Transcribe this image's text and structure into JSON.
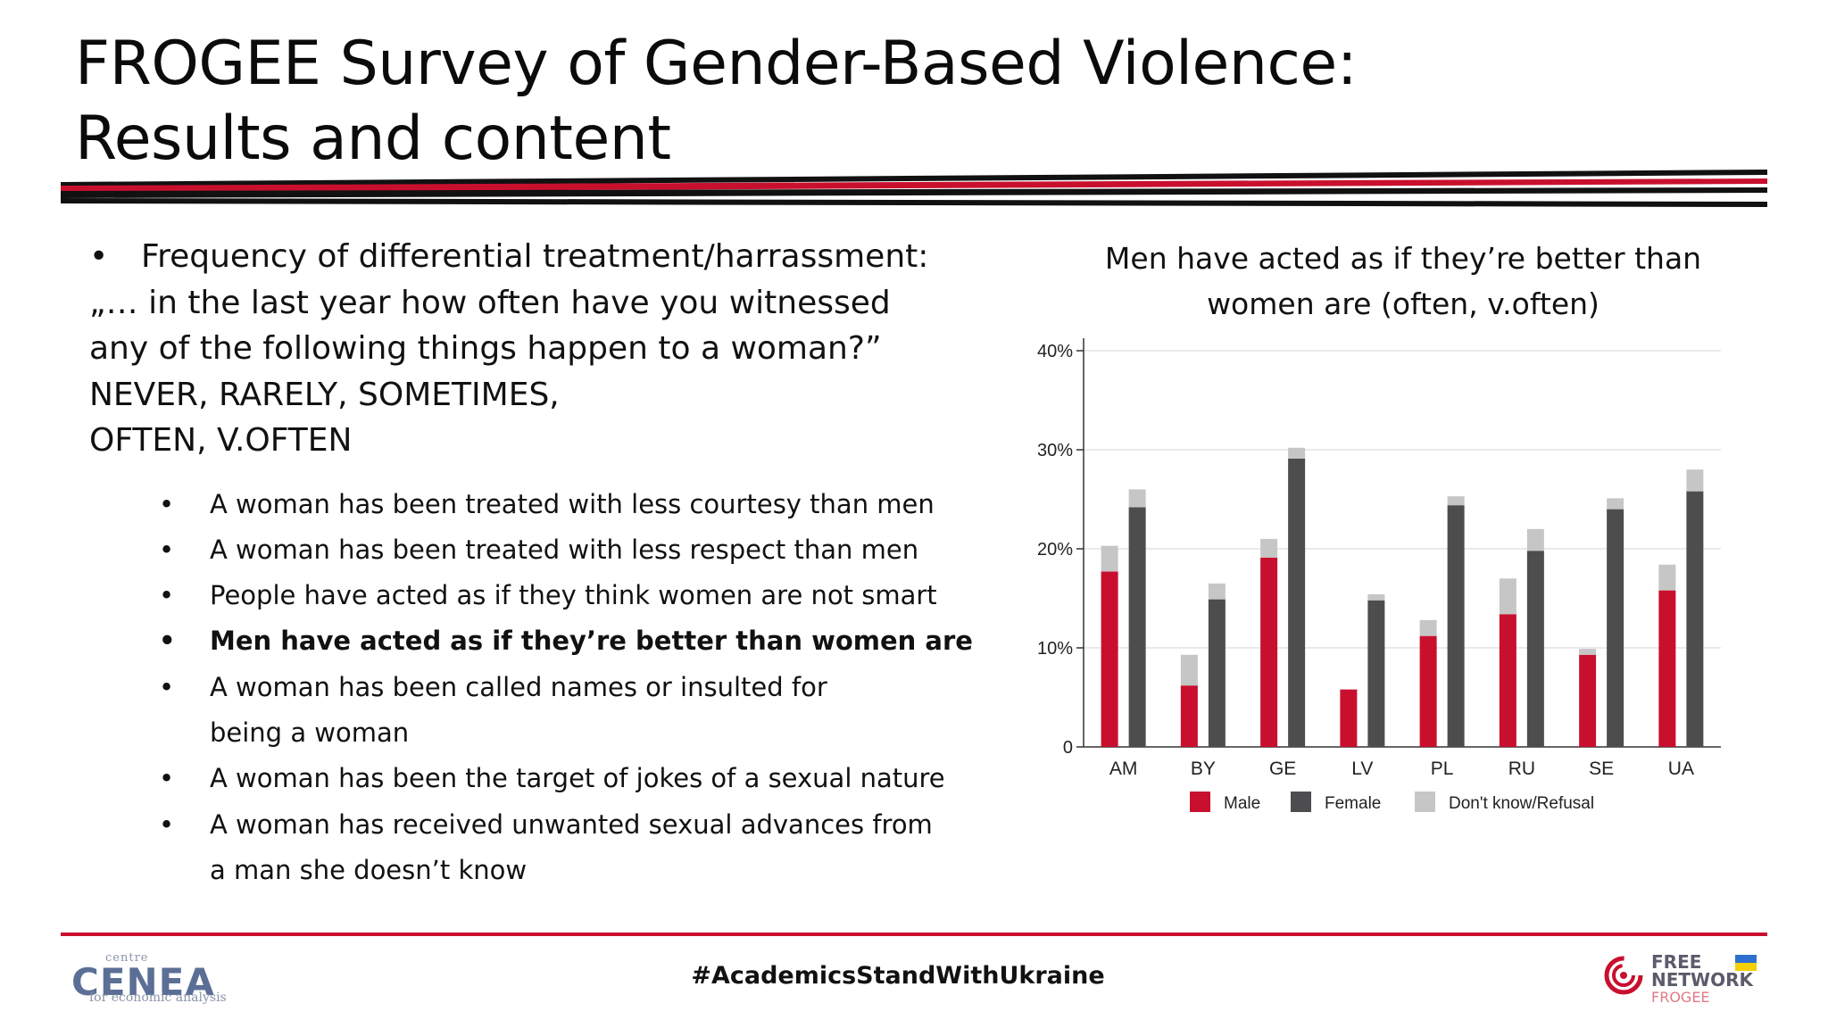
{
  "title": {
    "line1": "FROGEE Survey of Gender-Based Violence:",
    "line2": "Results and content"
  },
  "intro": {
    "bullet": "•",
    "lines": [
      "Frequency of differential treatment/harrassment:",
      "„… in the last year how often have you witnessed",
      "any of the following things happen to a woman?”",
      "NEVER, RARELY, SOMETIMES,",
      "OFTEN, V.OFTEN"
    ]
  },
  "items": [
    {
      "lines": [
        "A woman has been treated with less courtesy than men"
      ],
      "bold": false
    },
    {
      "lines": [
        "A woman has been treated with less respect than men"
      ],
      "bold": false
    },
    {
      "lines": [
        "People have acted as if they think women are not smart"
      ],
      "bold": false
    },
    {
      "lines": [
        "Men have acted as if they’re better than women are"
      ],
      "bold": true
    },
    {
      "lines": [
        "A woman has been called names or insulted for",
        "being a woman"
      ],
      "bold": false
    },
    {
      "lines": [
        "A woman has been the target of jokes of a sexual nature"
      ],
      "bold": false
    },
    {
      "lines": [
        "A woman has received unwanted sexual advances from",
        "a man she doesn’t know"
      ],
      "bold": false
    }
  ],
  "chart_title": {
    "line1": "Men have acted as if they’re better than",
    "line2": "women are (often, v.often)"
  },
  "chart_data": {
    "type": "bar",
    "stacked": true,
    "title": "Men have acted as if they’re better than women are (often, v.often)",
    "xlabel": "",
    "ylabel": "",
    "categories": [
      "AM",
      "BY",
      "GE",
      "LV",
      "PL",
      "RU",
      "SE",
      "UA"
    ],
    "groups": [
      "Male",
      "Female"
    ],
    "series": [
      {
        "name": "Male",
        "values": [
          17.7,
          6.2,
          19.1,
          5.8,
          11.2,
          13.4,
          9.3,
          15.8
        ]
      },
      {
        "name": "Female",
        "values": [
          24.2,
          14.9,
          29.1,
          14.8,
          24.4,
          19.8,
          24.0,
          25.8
        ]
      },
      {
        "name": "Don't know/Refusal",
        "male_values": [
          2.6,
          3.1,
          1.9,
          0.0,
          1.6,
          3.6,
          0.6,
          2.6
        ],
        "female_values": [
          1.8,
          1.6,
          1.1,
          0.6,
          0.9,
          2.2,
          1.1,
          2.2
        ]
      }
    ],
    "ylim": [
      0,
      40
    ],
    "yticks": [
      0,
      10,
      20,
      30,
      40
    ],
    "ytick_labels": [
      "0",
      "10%",
      "20%",
      "30%",
      "40%"
    ],
    "grid": true,
    "legend_position": "bottom",
    "colors": {
      "Male": "#c8102e",
      "Female": "#4d4d4f",
      "Don't know/Refusal": "#c6c6c6",
      "grid": "#e3e3e3"
    }
  },
  "footer": {
    "hashtag": "#AcademicsStandWithUkraine",
    "left_logo": {
      "top": "centre",
      "main": "CENEA",
      "bottom": "for economic analysis"
    },
    "right_logo": {
      "line1": "FREE",
      "line2": "NETWORK",
      "line3": "FROGEE"
    }
  },
  "colors": {
    "accent_red": "#c8102e",
    "dark": "#111111",
    "logo_blue": "#5b6f96"
  }
}
